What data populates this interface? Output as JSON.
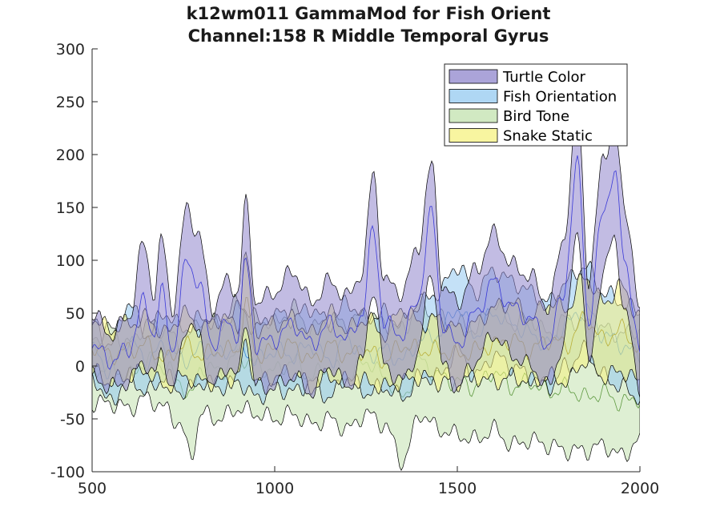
{
  "chart_data": {
    "type": "area",
    "title": "k12wm011 GammaMod for Fish Orient",
    "subtitle": "Channel:158 R Middle Temporal Gyrus",
    "xlabel": "",
    "ylabel": "",
    "xlim": [
      500,
      2000
    ],
    "ylim": [
      -100,
      300
    ],
    "x_ticks": [
      500,
      1000,
      1500,
      2000
    ],
    "y_ticks": [
      -100,
      -50,
      0,
      50,
      100,
      150,
      200,
      250,
      300
    ],
    "grid": false,
    "legend_position": "top-right",
    "series": [
      {
        "name": "Turtle Color",
        "fill": "#8f85cc",
        "line": "#2b2bd6",
        "x": [
          500,
          550,
          600,
          640,
          670,
          690,
          720,
          760,
          790,
          830,
          870,
          900,
          920,
          950,
          1000,
          1050,
          1100,
          1150,
          1200,
          1240,
          1270,
          1300,
          1350,
          1390,
          1430,
          1460,
          1500,
          1550,
          1600,
          1650,
          1700,
          1750,
          1790,
          1830,
          1860,
          1900,
          1930,
          1960,
          2000
        ],
        "upper": [
          50,
          30,
          45,
          115,
          70,
          120,
          55,
          150,
          125,
          55,
          80,
          70,
          155,
          60,
          70,
          90,
          60,
          80,
          65,
          90,
          183,
          80,
          70,
          110,
          190,
          75,
          60,
          90,
          125,
          95,
          85,
          55,
          120,
          240,
          80,
          200,
          225,
          150,
          50
        ],
        "mean": [
          20,
          5,
          15,
          60,
          30,
          70,
          15,
          100,
          80,
          20,
          40,
          30,
          100,
          20,
          25,
          40,
          20,
          40,
          25,
          50,
          130,
          40,
          30,
          60,
          145,
          40,
          20,
          50,
          80,
          55,
          45,
          20,
          70,
          190,
          40,
          150,
          180,
          100,
          10
        ],
        "lower": [
          -10,
          -20,
          -15,
          5,
          -10,
          15,
          -25,
          40,
          30,
          -20,
          0,
          -10,
          45,
          -20,
          -20,
          -10,
          -25,
          0,
          -20,
          5,
          75,
          0,
          -15,
          10,
          90,
          0,
          -20,
          5,
          30,
          10,
          0,
          -20,
          20,
          130,
          0,
          90,
          120,
          50,
          -20
        ]
      },
      {
        "name": "Fish Orientation",
        "fill": "#94c9f0",
        "line": "#2b7fd6",
        "x": [
          500,
          550,
          600,
          650,
          700,
          750,
          800,
          850,
          900,
          950,
          1000,
          1050,
          1100,
          1150,
          1200,
          1250,
          1300,
          1350,
          1400,
          1450,
          1500,
          1550,
          1600,
          1650,
          1700,
          1750,
          1800,
          1850,
          1900,
          1950,
          2000
        ],
        "upper": [
          40,
          20,
          60,
          30,
          50,
          35,
          45,
          40,
          55,
          35,
          50,
          45,
          55,
          40,
          60,
          45,
          50,
          40,
          60,
          70,
          95,
          70,
          90,
          80,
          70,
          60,
          80,
          95,
          70,
          60,
          50
        ],
        "mean": [
          15,
          -5,
          25,
          5,
          20,
          5,
          15,
          10,
          20,
          5,
          15,
          10,
          20,
          5,
          25,
          10,
          15,
          5,
          25,
          30,
          55,
          30,
          50,
          40,
          30,
          20,
          40,
          55,
          30,
          20,
          10
        ],
        "lower": [
          -10,
          -35,
          -10,
          -25,
          -10,
          -25,
          -15,
          -20,
          -15,
          -30,
          -20,
          -25,
          -15,
          -30,
          -10,
          -25,
          -20,
          -30,
          -10,
          -10,
          15,
          -10,
          10,
          0,
          -10,
          -20,
          0,
          15,
          -10,
          -20,
          -30
        ]
      },
      {
        "name": "Bird Tone",
        "fill": "#c2e2ae",
        "line": "#4f8f2f",
        "x": [
          500,
          550,
          600,
          650,
          700,
          740,
          770,
          800,
          850,
          900,
          950,
          1000,
          1050,
          1100,
          1150,
          1200,
          1250,
          1300,
          1350,
          1400,
          1450,
          1500,
          1550,
          1600,
          1650,
          1700,
          1750,
          1800,
          1850,
          1900,
          1950,
          2000
        ],
        "upper": [
          25,
          35,
          20,
          40,
          35,
          20,
          30,
          45,
          40,
          60,
          45,
          40,
          55,
          35,
          45,
          40,
          50,
          40,
          35,
          60,
          45,
          40,
          35,
          60,
          40,
          45,
          30,
          45,
          40,
          35,
          30,
          35
        ],
        "mean": [
          -5,
          0,
          -10,
          5,
          0,
          -15,
          -30,
          0,
          -5,
          10,
          0,
          -5,
          5,
          -10,
          0,
          -10,
          5,
          -10,
          -30,
          5,
          -10,
          -15,
          -20,
          -5,
          -20,
          -15,
          -25,
          -20,
          -30,
          -25,
          -35,
          -30
        ],
        "lower": [
          -35,
          -35,
          -40,
          -30,
          -40,
          -55,
          -85,
          -45,
          -50,
          -40,
          -45,
          -50,
          -45,
          -55,
          -50,
          -60,
          -45,
          -55,
          -90,
          -45,
          -60,
          -65,
          -70,
          -60,
          -75,
          -70,
          -75,
          -80,
          -80,
          -75,
          -85,
          -70
        ]
      },
      {
        "name": "Snake Static",
        "fill": "#f5f280",
        "line": "#b5a82a",
        "x": [
          500,
          550,
          600,
          650,
          700,
          750,
          800,
          850,
          900,
          920,
          950,
          1000,
          1050,
          1100,
          1150,
          1200,
          1250,
          1300,
          1350,
          1400,
          1450,
          1500,
          1550,
          1600,
          1650,
          1700,
          1750,
          1800,
          1850,
          1900,
          1950,
          2000
        ],
        "upper": [
          45,
          35,
          40,
          45,
          30,
          50,
          35,
          45,
          40,
          105,
          35,
          40,
          45,
          30,
          50,
          35,
          45,
          30,
          55,
          40,
          45,
          35,
          40,
          55,
          60,
          45,
          60,
          55,
          85,
          60,
          75,
          45
        ],
        "mean": [
          20,
          10,
          15,
          20,
          5,
          20,
          10,
          15,
          15,
          60,
          10,
          15,
          20,
          5,
          20,
          10,
          15,
          5,
          20,
          15,
          15,
          10,
          15,
          20,
          25,
          15,
          25,
          20,
          45,
          25,
          35,
          15
        ],
        "lower": [
          -5,
          -15,
          -10,
          -5,
          -20,
          -10,
          -15,
          -15,
          -10,
          20,
          -15,
          -10,
          -5,
          -20,
          -10,
          -15,
          -15,
          -20,
          -15,
          -10,
          -15,
          -15,
          -10,
          -15,
          -10,
          -15,
          -10,
          -15,
          5,
          -10,
          -5,
          -15
        ]
      }
    ]
  }
}
